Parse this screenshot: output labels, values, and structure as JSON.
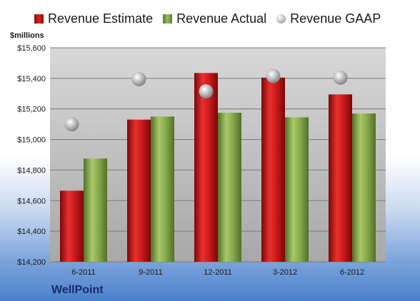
{
  "company": "WellPoint",
  "chart_data": {
    "type": "bar",
    "ylabel": "$millions",
    "ylim": [
      14200,
      15600
    ],
    "y_ticks": [
      "$14,200",
      "$14,400",
      "$14,600",
      "$14,800",
      "$15,000",
      "$15,200",
      "$15,400",
      "$15,600"
    ],
    "y_tick_values": [
      14200,
      14400,
      14600,
      14800,
      15000,
      15200,
      15400,
      15600
    ],
    "categories": [
      "6-2011",
      "9-2011",
      "12-2011",
      "3-2012",
      "6-2012"
    ],
    "series": [
      {
        "name": "Revenue Estimate",
        "kind": "bar",
        "color": "#d42020",
        "values": [
          14665,
          15130,
          15435,
          15405,
          15295
        ]
      },
      {
        "name": "Revenue Actual",
        "kind": "bar",
        "color": "#8db050",
        "values": [
          14875,
          15150,
          15175,
          15145,
          15170
        ]
      },
      {
        "name": "Revenue GAAP",
        "kind": "marker",
        "color": "#b0b0b0",
        "values": [
          15100,
          15395,
          15315,
          15415,
          15405
        ]
      }
    ],
    "grid": true,
    "legend_position": "top"
  }
}
